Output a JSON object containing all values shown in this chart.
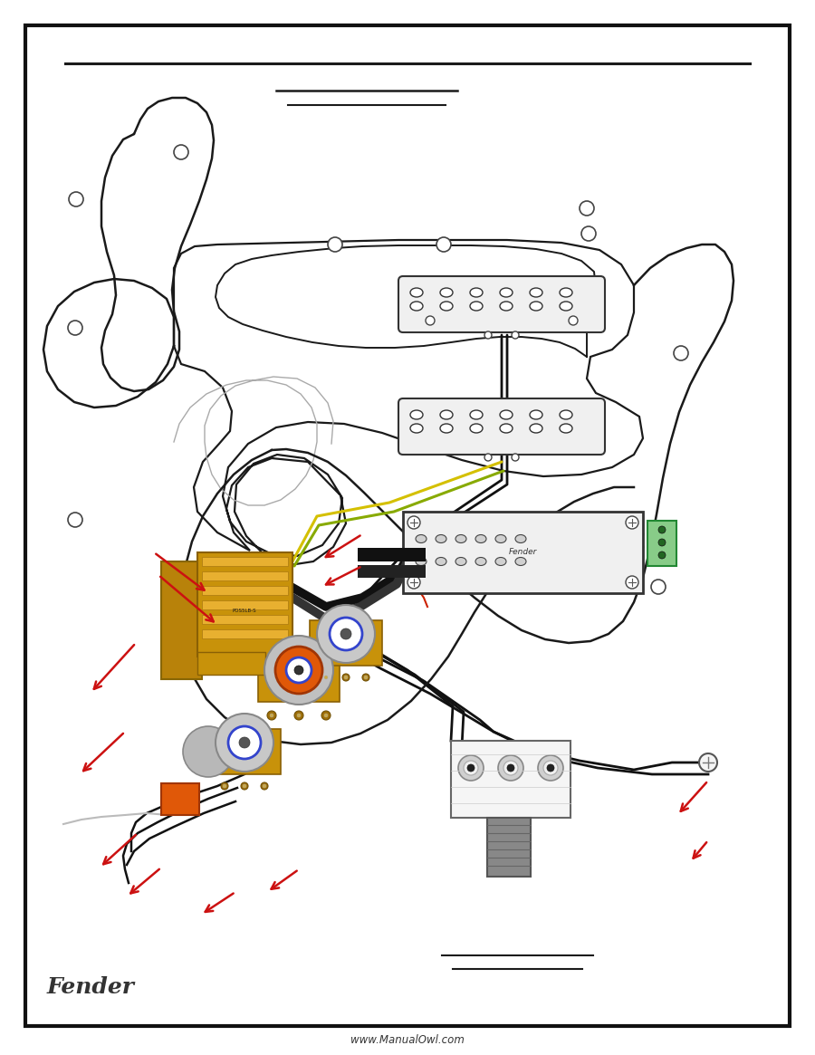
{
  "bg": "#ffffff",
  "border_color": "#1a1a1a",
  "line_color": "#1a1a1a",
  "black_wire": "#111111",
  "yellow_wire": "#d4c000",
  "green_wire": "#228833",
  "red_wire": "#cc2200",
  "gray_wire": "#aaaaaa",
  "white_wire": "#dddddd",
  "pcb_color": "#c8920a",
  "pcb_edge": "#8a6005",
  "orange_cap": "#e06010",
  "humbucker_bg": "#f0f0f0",
  "red_arrow": "#cc1111",
  "website": "www.ManualOwl.com",
  "fender_script": "Fender"
}
